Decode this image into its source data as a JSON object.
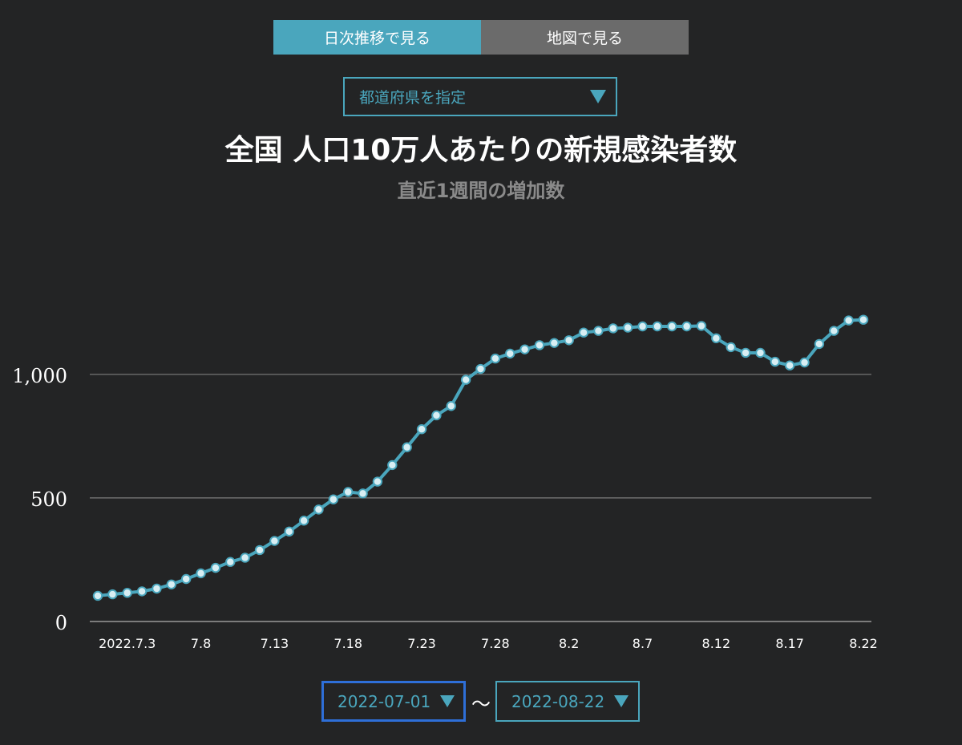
{
  "tabs": [
    {
      "label": "日次推移で見る",
      "active": true
    },
    {
      "label": "地図で見る",
      "active": false
    }
  ],
  "prefecture_select": {
    "label": "都道府県を指定"
  },
  "colors": {
    "accent": "#4aa6bd",
    "background": "#232425",
    "grid": "#7d7d7d",
    "inactive_tab": "#6b6b6b"
  },
  "date_range": {
    "start": "2022-07-01",
    "end": "2022-08-22",
    "separator": "〜"
  },
  "chart_data": {
    "type": "line",
    "title": "全国 人口10万人あたりの新規感染者数",
    "subtitle": "直近1週間の増加数",
    "ylim": [
      0,
      1400
    ],
    "yticks": [
      0,
      500,
      1000
    ],
    "ytick_labels": [
      "0",
      "500",
      "1,000"
    ],
    "xtick_labels": [
      "2022.7.3",
      "7.8",
      "7.13",
      "7.18",
      "7.23",
      "7.28",
      "8.2",
      "8.7",
      "8.12",
      "8.17",
      "8.22"
    ],
    "xtick_indices": [
      2,
      7,
      12,
      17,
      22,
      27,
      32,
      37,
      42,
      47,
      52
    ],
    "grid": true,
    "series": [
      {
        "x_start": "2022-07-01",
        "x_end": "2022-08-22",
        "values": [
          104,
          110,
          116,
          122,
          133,
          150,
          172,
          195,
          217,
          241,
          258,
          289,
          326,
          364,
          408,
          453,
          494,
          524,
          518,
          566,
          633,
          705,
          778,
          834,
          872,
          978,
          1022,
          1064,
          1084,
          1101,
          1118,
          1127,
          1138,
          1169,
          1176,
          1186,
          1189,
          1194,
          1194,
          1194,
          1194,
          1196,
          1146,
          1110,
          1087,
          1087,
          1051,
          1036,
          1048,
          1123,
          1176,
          1218,
          1221
        ]
      }
    ]
  }
}
